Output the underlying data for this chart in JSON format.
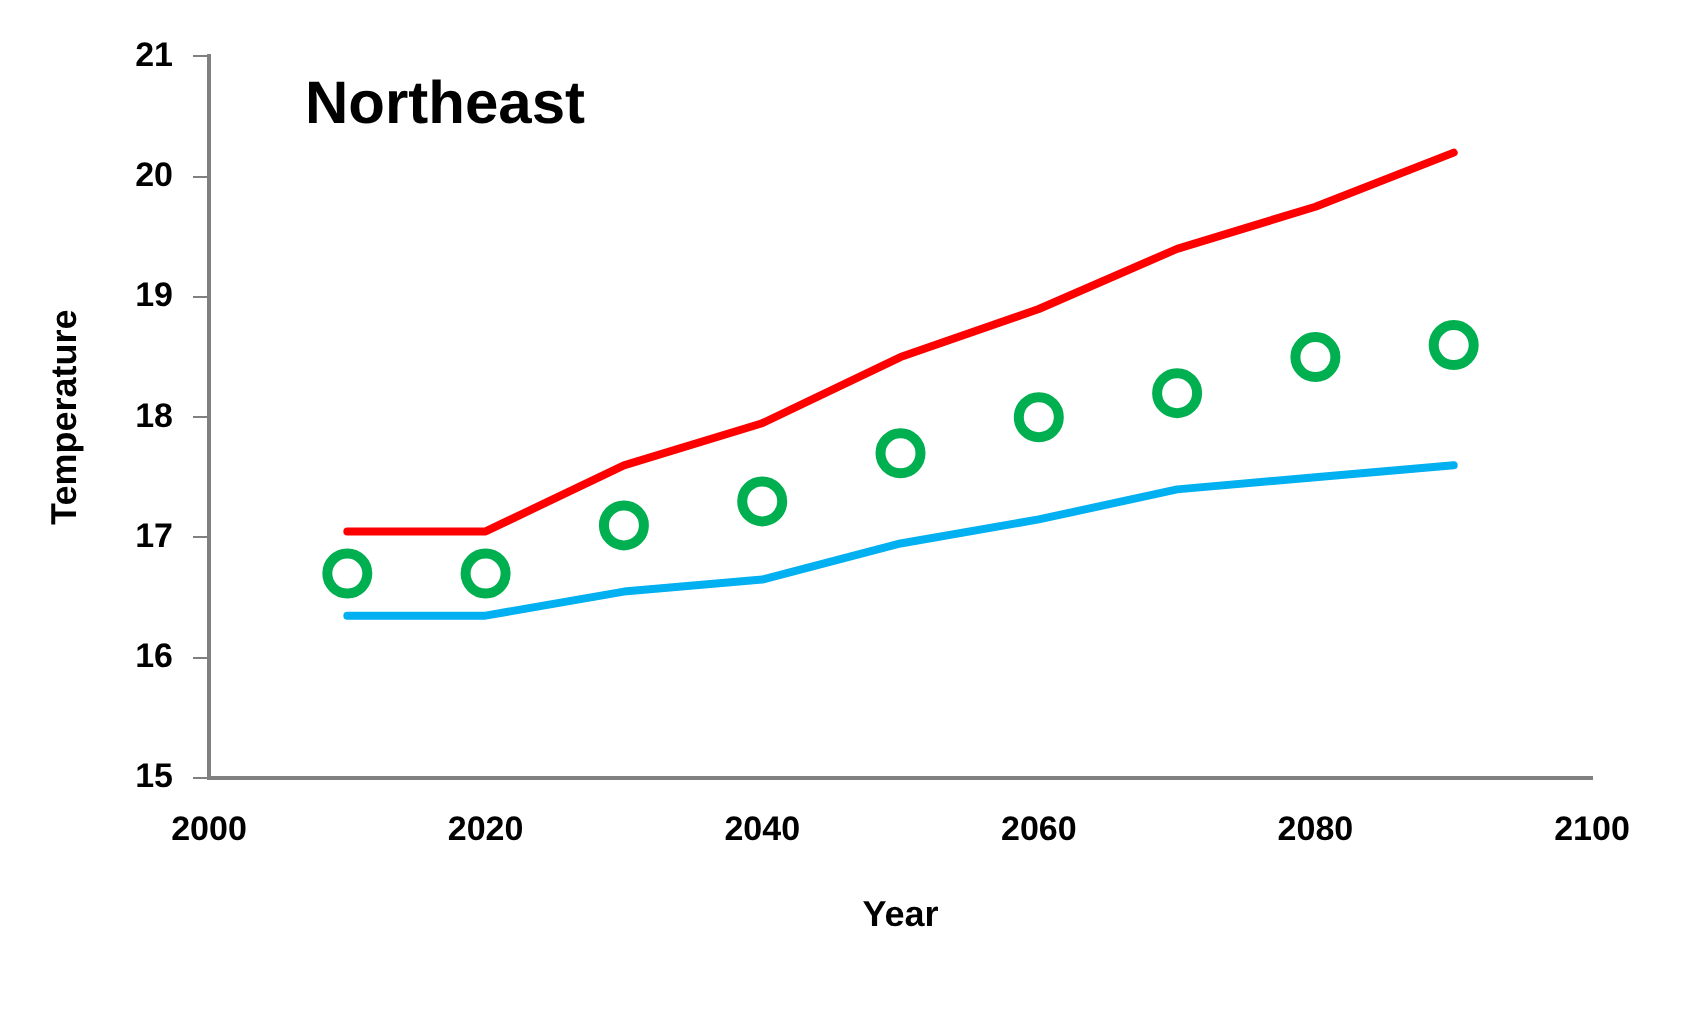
{
  "chart_data": {
    "type": "line",
    "title": "Northeast",
    "xlabel": "Year",
    "ylabel": "Temperature",
    "x": [
      2010,
      2020,
      2030,
      2040,
      2050,
      2060,
      2070,
      2080,
      2090
    ],
    "series": [
      {
        "type": "line",
        "color": "#ff0000",
        "marker": "none",
        "values": [
          17.05,
          17.05,
          17.6,
          17.95,
          18.5,
          18.9,
          19.4,
          19.75,
          20.2
        ]
      },
      {
        "type": "line",
        "color": "#00b0f0",
        "marker": "none",
        "values": [
          16.35,
          16.35,
          16.55,
          16.65,
          16.95,
          17.15,
          17.4,
          17.5,
          17.6
        ]
      },
      {
        "type": "scatter",
        "color": "#00b050",
        "marker": "circle",
        "values": [
          16.7,
          16.7,
          17.1,
          17.3,
          17.7,
          18.0,
          18.2,
          18.5,
          18.6
        ]
      }
    ],
    "xlim": [
      2000,
      2100
    ],
    "xticks": [
      2000,
      2020,
      2040,
      2060,
      2080,
      2100
    ],
    "ylim": [
      15,
      21
    ],
    "yticks": [
      15,
      16,
      17,
      18,
      19,
      20,
      21
    ],
    "grid": false,
    "legend": false
  }
}
